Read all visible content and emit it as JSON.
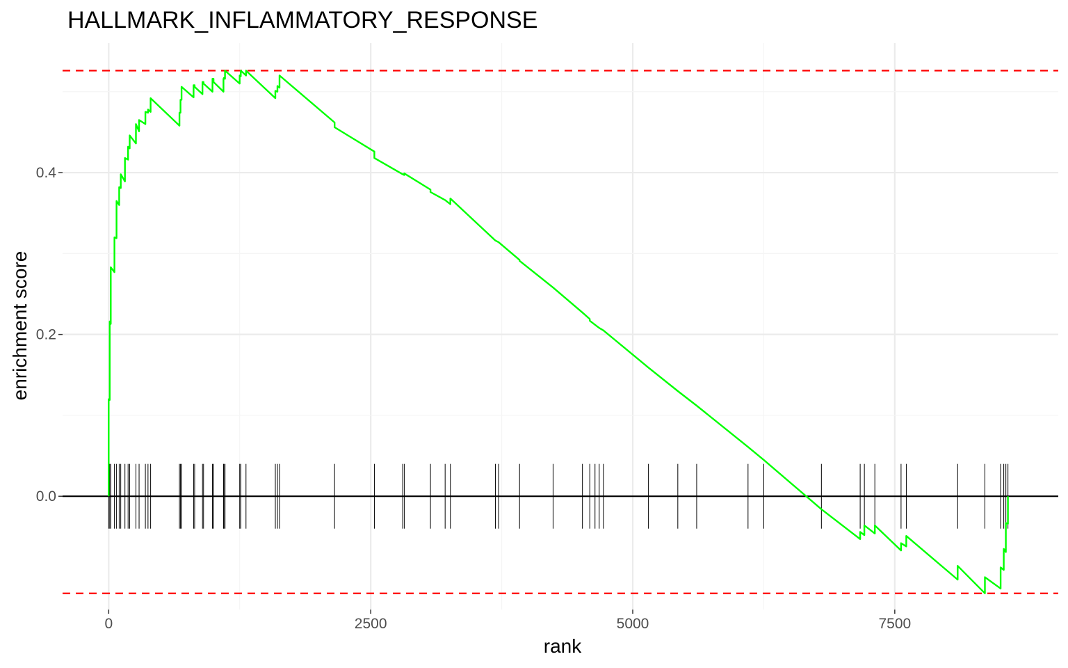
{
  "chart_data": {
    "type": "line",
    "title": "HALLMARK_INFLAMMATORY_RESPONSE",
    "xlabel": "rank",
    "ylabel": "enrichment score",
    "xlim": [
      -440,
      9060
    ],
    "ylim": [
      -0.14,
      0.56
    ],
    "x_ticks": [
      0,
      2500,
      5000,
      7500
    ],
    "x_tick_labels": [
      "0",
      "2500",
      "5000",
      "7500"
    ],
    "y_ticks": [
      0.0,
      0.2,
      0.4
    ],
    "y_tick_labels": [
      "0.0",
      "0.2",
      "0.4"
    ],
    "grid": true,
    "legend": "none",
    "colors": {
      "curve": "#00ff00",
      "threshold": "#ff0000",
      "zero_line": "#000000",
      "hits": "#000000",
      "grid": "#ebebeb"
    },
    "thresholds": [
      0.526,
      -0.12
    ],
    "series": [
      {
        "values_x": [
          0,
          0,
          10,
          10,
          20,
          20,
          55,
          55,
          75,
          75,
          100,
          100,
          115,
          115,
          155,
          155,
          185,
          185,
          200,
          200,
          260,
          260,
          290,
          290,
          350,
          350,
          375,
          375,
          400,
          400,
          675,
          675,
          685,
          685,
          695,
          695,
          810,
          810,
          820,
          820,
          895,
          895,
          905,
          905,
          990,
          990,
          1000,
          1000,
          1095,
          1095,
          1100,
          1100,
          1110,
          1110,
          1250,
          1250,
          1260,
          1260,
          1310,
          1310,
          1590,
          1590,
          1610,
          1610,
          1630,
          1630,
          2155,
          2155,
          2535,
          2535,
          2805,
          2805,
          2820,
          2820,
          3070,
          3070,
          3210,
          3210,
          3260,
          3260,
          3690,
          3690,
          3720,
          3720,
          3920,
          3920,
          4240,
          4240,
          4520,
          4520,
          4590,
          4590,
          4640,
          4640,
          4680,
          4680,
          4720,
          4720,
          5150,
          5150,
          5430,
          5430,
          5610,
          5610,
          6100,
          6100,
          6250,
          6250,
          6800,
          6800,
          7170,
          7170,
          7210,
          7210,
          7310,
          7310,
          7560,
          7560,
          7610,
          7610,
          8100,
          8100,
          8360,
          8360,
          8510,
          8510,
          8540,
          8540,
          8560,
          8560,
          8580,
          8580
        ],
        "values_y": [
          0,
          0.12,
          0.119,
          0.216,
          0.213,
          0.283,
          0.277,
          0.32,
          0.319,
          0.365,
          0.36,
          0.382,
          0.381,
          0.398,
          0.389,
          0.418,
          0.416,
          0.432,
          0.43,
          0.446,
          0.436,
          0.46,
          0.451,
          0.465,
          0.46,
          0.475,
          0.474,
          0.478,
          0.475,
          0.492,
          0.458,
          0.474,
          0.474,
          0.49,
          0.49,
          0.506,
          0.493,
          0.508,
          0.508,
          0.506,
          0.497,
          0.512,
          0.512,
          0.51,
          0.5,
          0.516,
          0.516,
          0.512,
          0.5,
          0.516,
          0.516,
          0.517,
          0.516,
          0.526,
          0.51,
          0.52,
          0.519,
          0.526,
          0.52,
          0.526,
          0.492,
          0.501,
          0.5,
          0.507,
          0.505,
          0.52,
          0.462,
          0.456,
          0.426,
          0.418,
          0.398,
          0.398,
          0.397,
          0.399,
          0.379,
          0.376,
          0.366,
          0.366,
          0.361,
          0.368,
          0.316,
          0.316,
          0.314,
          0.314,
          0.292,
          0.291,
          0.258,
          0.258,
          0.227,
          0.227,
          0.219,
          0.217,
          0.212,
          0.212,
          0.208,
          0.208,
          0.205,
          0.205,
          0.159,
          0.159,
          0.13,
          0.13,
          0.112,
          0.112,
          0.061,
          0.061,
          0.045,
          0.045,
          -0.016,
          -0.016,
          -0.053,
          -0.044,
          -0.048,
          -0.036,
          -0.046,
          -0.036,
          -0.067,
          -0.058,
          -0.062,
          -0.049,
          -0.103,
          -0.086,
          -0.12,
          -0.1,
          -0.114,
          -0.088,
          -0.091,
          -0.065,
          -0.069,
          -0.033,
          -0.034,
          0.0
        ]
      }
    ],
    "hits": [
      0,
      10,
      20,
      55,
      75,
      100,
      115,
      155,
      185,
      200,
      260,
      290,
      350,
      375,
      400,
      675,
      685,
      695,
      810,
      820,
      895,
      905,
      990,
      1000,
      1095,
      1100,
      1110,
      1250,
      1260,
      1310,
      1590,
      1610,
      1630,
      2155,
      2535,
      2805,
      2820,
      3070,
      3210,
      3260,
      3690,
      3720,
      3920,
      4240,
      4520,
      4590,
      4640,
      4680,
      4720,
      5150,
      5430,
      5610,
      6100,
      6250,
      6800,
      7170,
      7210,
      7310,
      7560,
      7610,
      8100,
      8360,
      8510,
      8540,
      8560,
      8580
    ]
  }
}
